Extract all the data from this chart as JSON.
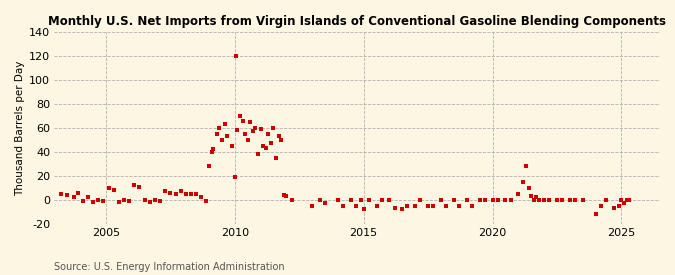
{
  "title": "Monthly U.S. Net Imports from Virgin Islands of Conventional Gasoline Blending Components",
  "ylabel": "Thousand Barrels per Day",
  "source": "Source: U.S. Energy Information Administration",
  "background_color": "#fdf6e3",
  "plot_bg_color": "#fdf6e3",
  "dot_color": "#cc0000",
  "xlim": [
    2003.0,
    2026.5
  ],
  "ylim": [
    -20,
    140
  ],
  "yticks": [
    -20,
    0,
    20,
    40,
    60,
    80,
    100,
    120,
    140
  ],
  "xticks": [
    2005,
    2010,
    2015,
    2020,
    2025
  ],
  "data_points": [
    [
      2003.25,
      5
    ],
    [
      2003.5,
      4
    ],
    [
      2003.75,
      2
    ],
    [
      2003.9,
      6
    ],
    [
      2004.1,
      -1
    ],
    [
      2004.3,
      2
    ],
    [
      2004.5,
      -2
    ],
    [
      2004.7,
      0
    ],
    [
      2004.9,
      -1
    ],
    [
      2005.1,
      10
    ],
    [
      2005.3,
      8
    ],
    [
      2005.5,
      -2
    ],
    [
      2005.7,
      0
    ],
    [
      2005.9,
      -1
    ],
    [
      2006.1,
      12
    ],
    [
      2006.3,
      11
    ],
    [
      2006.5,
      0
    ],
    [
      2006.7,
      -2
    ],
    [
      2006.9,
      0
    ],
    [
      2007.1,
      -1
    ],
    [
      2007.3,
      7
    ],
    [
      2007.5,
      6
    ],
    [
      2007.7,
      5
    ],
    [
      2007.9,
      7
    ],
    [
      2008.1,
      5
    ],
    [
      2008.3,
      5
    ],
    [
      2008.5,
      5
    ],
    [
      2008.7,
      2
    ],
    [
      2008.9,
      -1
    ],
    [
      2009.0,
      28
    ],
    [
      2009.1,
      40
    ],
    [
      2009.15,
      42
    ],
    [
      2009.3,
      55
    ],
    [
      2009.4,
      60
    ],
    [
      2009.5,
      50
    ],
    [
      2009.6,
      63
    ],
    [
      2009.7,
      53
    ],
    [
      2009.9,
      45
    ],
    [
      2010.0,
      19
    ],
    [
      2010.05,
      120
    ],
    [
      2010.1,
      58
    ],
    [
      2010.2,
      70
    ],
    [
      2010.3,
      66
    ],
    [
      2010.4,
      55
    ],
    [
      2010.5,
      50
    ],
    [
      2010.6,
      65
    ],
    [
      2010.7,
      57
    ],
    [
      2010.8,
      60
    ],
    [
      2010.9,
      38
    ],
    [
      2011.0,
      59
    ],
    [
      2011.1,
      45
    ],
    [
      2011.2,
      43
    ],
    [
      2011.3,
      55
    ],
    [
      2011.4,
      47
    ],
    [
      2011.5,
      60
    ],
    [
      2011.6,
      35
    ],
    [
      2011.7,
      53
    ],
    [
      2011.8,
      50
    ],
    [
      2011.9,
      4
    ],
    [
      2012.0,
      3
    ],
    [
      2012.2,
      0
    ],
    [
      2013.0,
      -5
    ],
    [
      2013.3,
      0
    ],
    [
      2013.5,
      -3
    ],
    [
      2014.0,
      0
    ],
    [
      2014.2,
      -5
    ],
    [
      2014.5,
      0
    ],
    [
      2014.7,
      -5
    ],
    [
      2014.9,
      0
    ],
    [
      2015.0,
      -8
    ],
    [
      2015.2,
      0
    ],
    [
      2015.5,
      -5
    ],
    [
      2015.7,
      0
    ],
    [
      2016.0,
      0
    ],
    [
      2016.2,
      -7
    ],
    [
      2016.5,
      -8
    ],
    [
      2016.7,
      -5
    ],
    [
      2017.0,
      -5
    ],
    [
      2017.2,
      0
    ],
    [
      2017.5,
      -5
    ],
    [
      2017.7,
      -5
    ],
    [
      2018.0,
      0
    ],
    [
      2018.2,
      -5
    ],
    [
      2018.5,
      0
    ],
    [
      2018.7,
      -5
    ],
    [
      2019.0,
      0
    ],
    [
      2019.2,
      -5
    ],
    [
      2019.5,
      0
    ],
    [
      2019.7,
      0
    ],
    [
      2020.0,
      0
    ],
    [
      2020.2,
      0
    ],
    [
      2020.5,
      0
    ],
    [
      2020.7,
      0
    ],
    [
      2021.0,
      5
    ],
    [
      2021.2,
      15
    ],
    [
      2021.3,
      28
    ],
    [
      2021.4,
      10
    ],
    [
      2021.5,
      3
    ],
    [
      2021.6,
      0
    ],
    [
      2021.7,
      2
    ],
    [
      2021.8,
      0
    ],
    [
      2022.0,
      0
    ],
    [
      2022.2,
      0
    ],
    [
      2022.5,
      0
    ],
    [
      2022.7,
      0
    ],
    [
      2023.0,
      0
    ],
    [
      2023.2,
      0
    ],
    [
      2023.5,
      0
    ],
    [
      2024.0,
      -12
    ],
    [
      2024.2,
      -5
    ],
    [
      2024.4,
      0
    ],
    [
      2024.7,
      -7
    ],
    [
      2024.9,
      -5
    ],
    [
      2025.0,
      0
    ],
    [
      2025.1,
      -3
    ],
    [
      2025.2,
      0
    ],
    [
      2025.3,
      0
    ]
  ]
}
